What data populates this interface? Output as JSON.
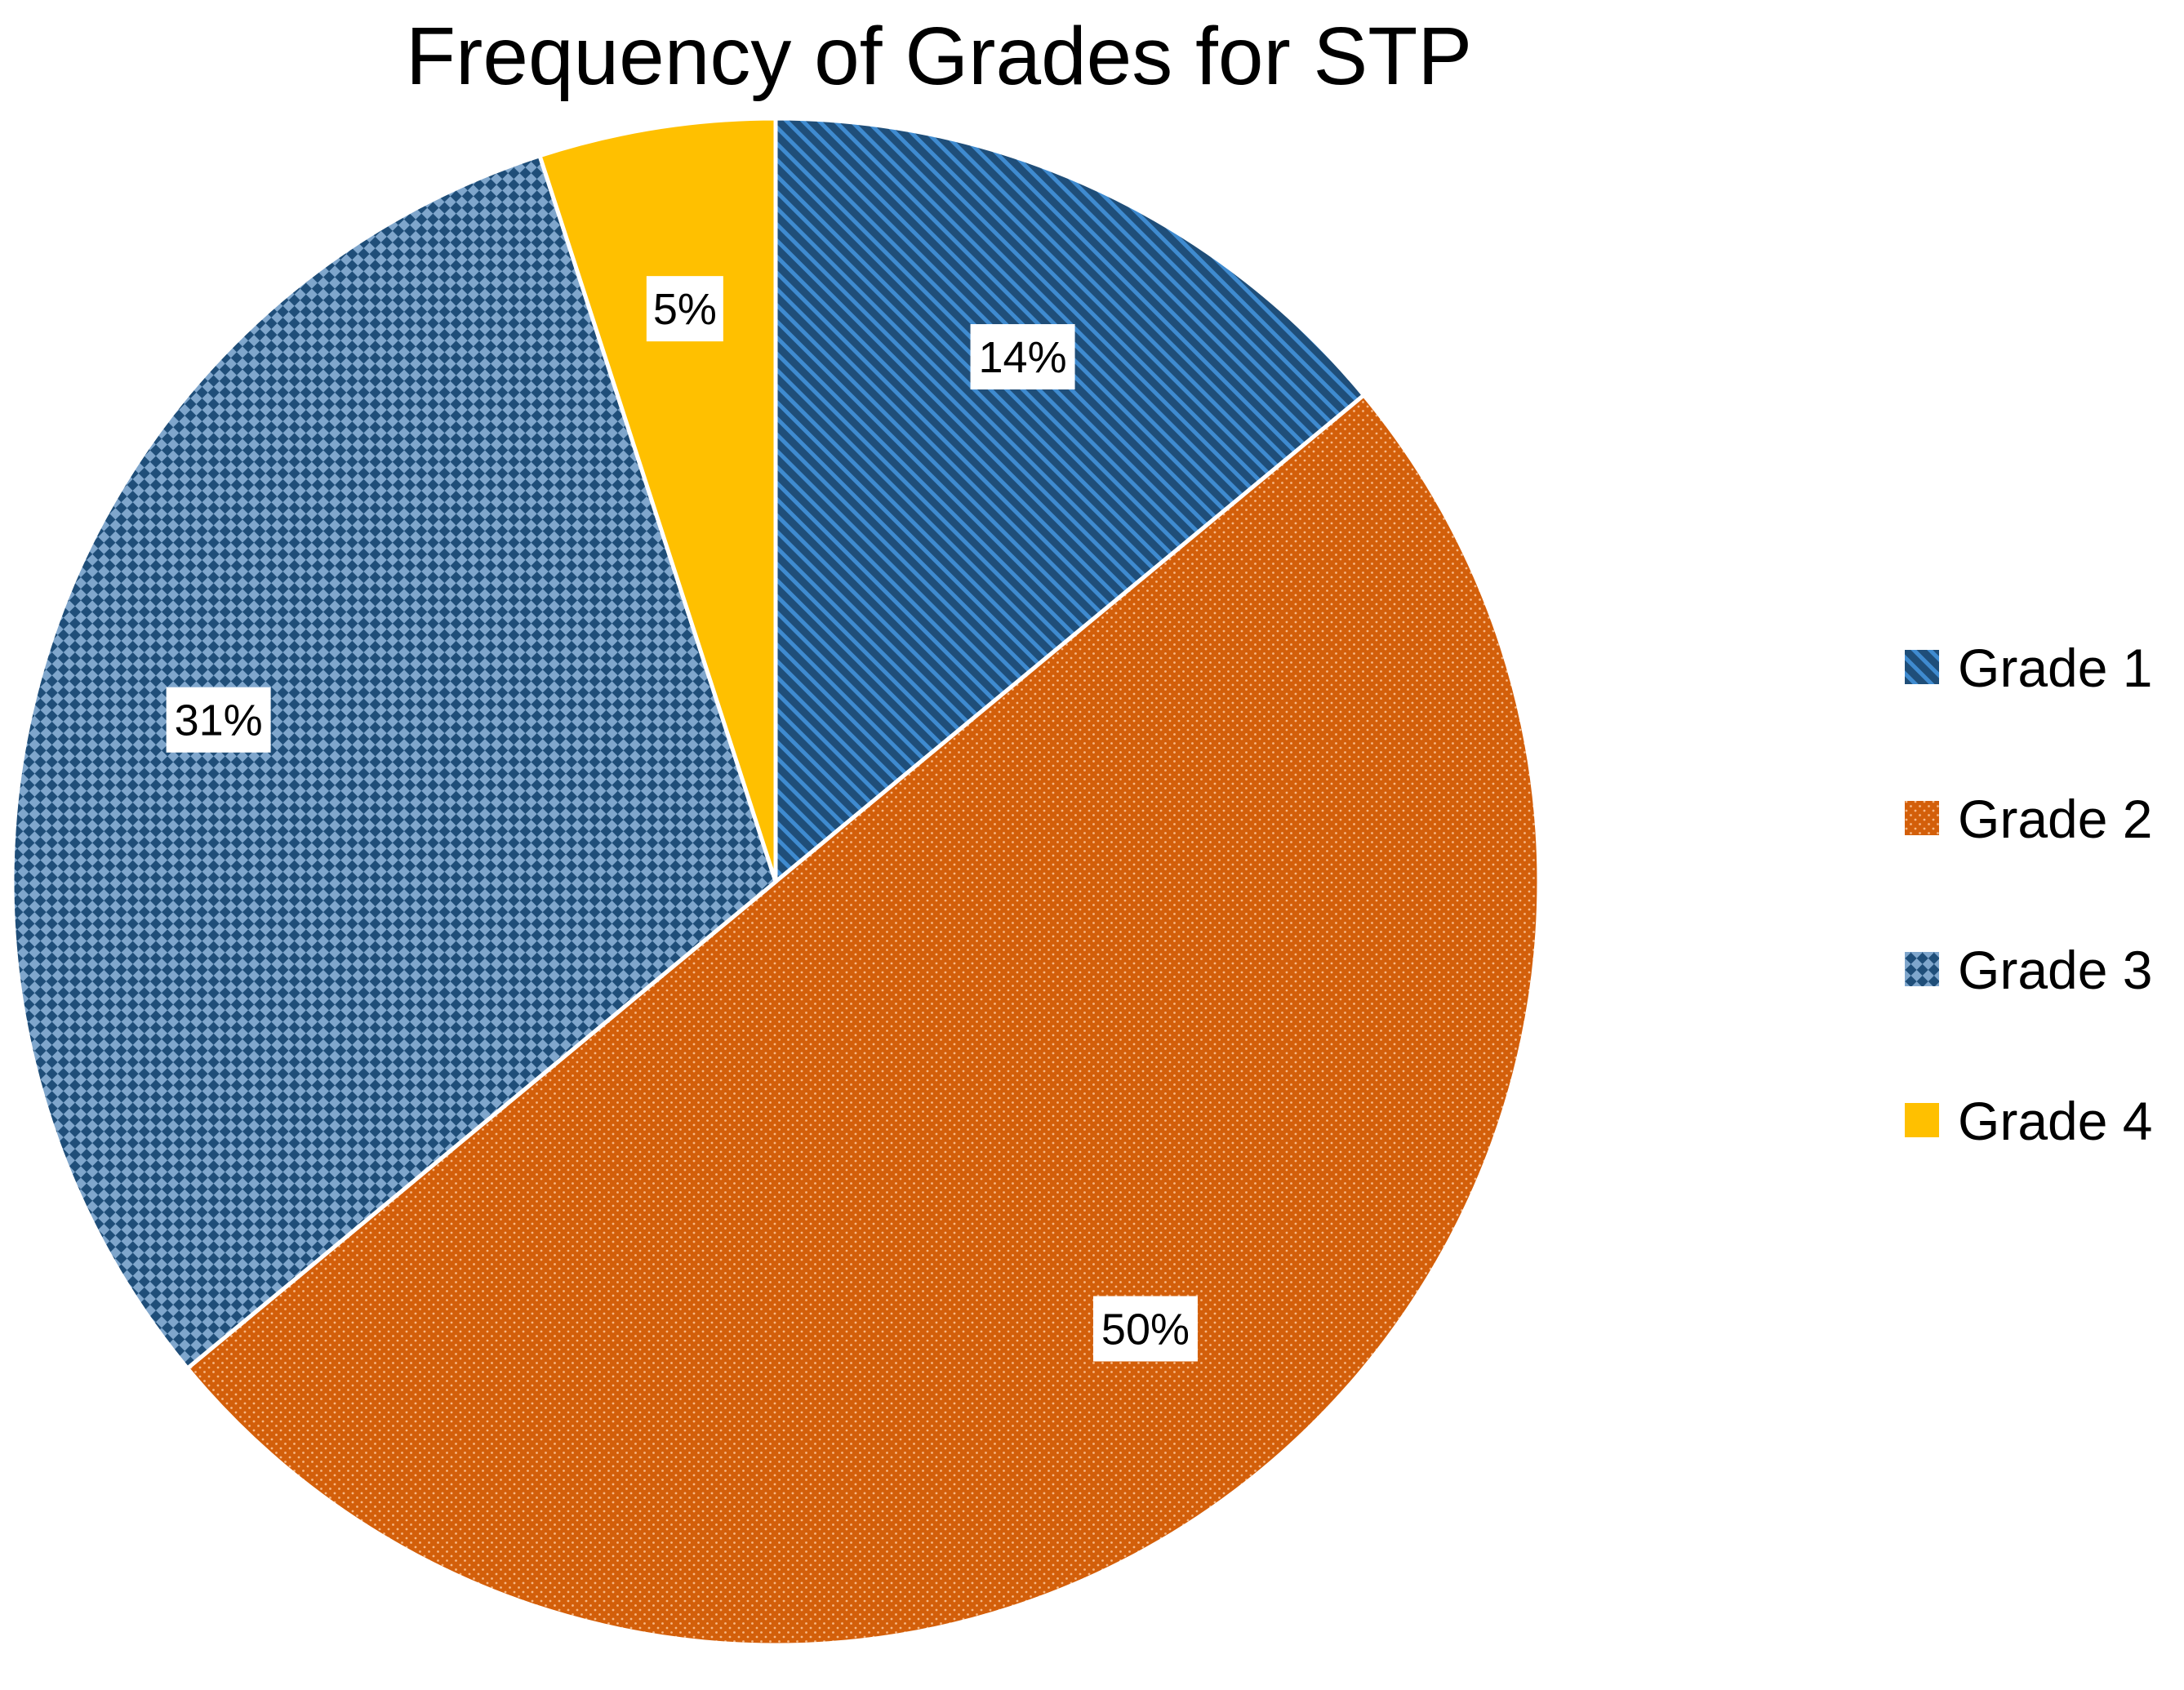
{
  "chart_data": {
    "type": "pie",
    "title": "Frequency of Grades for STP",
    "categories": [
      "Grade 1",
      "Grade 2",
      "Grade 3",
      "Grade 4"
    ],
    "values": [
      14,
      50,
      31,
      5
    ],
    "value_labels": [
      "14%",
      "50%",
      "31%",
      "5%"
    ],
    "unit": "%",
    "start_angle_deg": 0,
    "direction": "clockwise",
    "legend_position": "right",
    "colors": [
      "#1F4E79",
      "#D35F0A",
      "#4A6F95",
      "#FFC000"
    ],
    "pattern_names": [
      "diagonal-stripes",
      "dots",
      "checkerboard",
      "solid"
    ]
  }
}
